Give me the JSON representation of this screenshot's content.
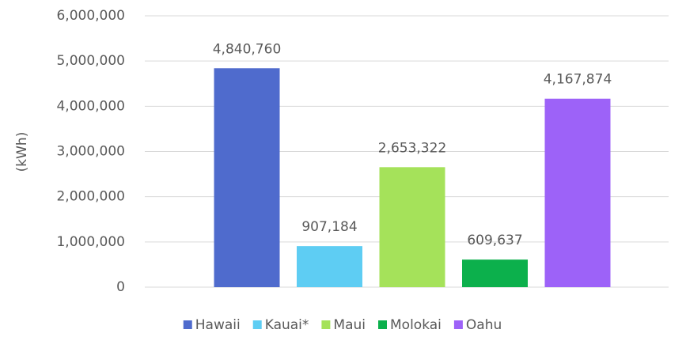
{
  "chart_data": {
    "type": "bar",
    "y_label": "(kWh)",
    "categories": [
      "Hawaii",
      "Kauai*",
      "Maui",
      "Molokai",
      "Oahu"
    ],
    "values": [
      4840760,
      907184,
      2653322,
      609637,
      4167874
    ],
    "value_labels": [
      "4,840,760",
      "907,184",
      "2,653,322",
      "609,637",
      "4,167,874"
    ],
    "colors": [
      "#4f6bcd",
      "#5ecdf3",
      "#a5e25a",
      "#0cb04c",
      "#9d62f8"
    ],
    "ylim": [
      0,
      6000000
    ],
    "yticks": [
      0,
      {
        "value": 1000000,
        "label": "1,000,000"
      },
      {
        "value": 2000000,
        "label": "2,000,000"
      },
      {
        "value": 3000000,
        "label": "3,000,000"
      },
      {
        "value": 4000000,
        "label": "4,000,000"
      },
      {
        "value": 5000000,
        "label": "5,000,000"
      },
      {
        "value": 6000000,
        "label": "6,000,000"
      }
    ],
    "grid": true,
    "legend": "bottom"
  }
}
